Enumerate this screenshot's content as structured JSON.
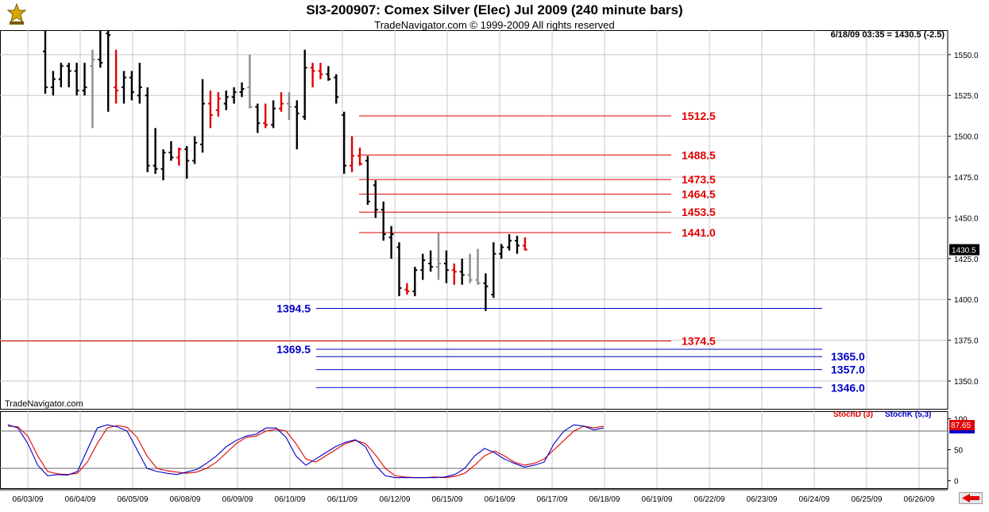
{
  "header": {
    "title": "SI3-200907:  Comex Silver (Elec) Jul 2009  (240 minute bars)",
    "copyright": "TradeNavigator.com © 1999-2009 All rights reserved",
    "readout": "6/18/09 03:35 = 1430.5 (-2.5)",
    "watermark": "TradeNavigator.com"
  },
  "colors": {
    "up_bar": "#000000",
    "down_bar": "#e00000",
    "neutral_bar": "#8c8c8c",
    "resistance": "#e00000",
    "support": "#0000c8",
    "grid": "#c8c8c8",
    "stoch_d": "#e00000",
    "stoch_k": "#0000c8",
    "last_price_bg": "#000000",
    "stoch_value_bg": "#e00000"
  },
  "icons": {
    "logo": "trade-navigator-logo-icon",
    "scroll": "scroll-right-arrow-icon"
  },
  "chart_data": [
    {
      "type": "ohlc",
      "ylim": [
        1333,
        1565
      ],
      "y_ticks": [
        1350,
        1375,
        1400,
        1425,
        1450,
        1475,
        1500,
        1525,
        1550
      ],
      "y_tick_labels": [
        "1350.0",
        "1375.0",
        "1400.0",
        "1425.0",
        "1450.0",
        "1475.0",
        "1500.0",
        "1525.0",
        "1550.0"
      ],
      "date_labels": [
        "06/03/09",
        "06/04/09",
        "06/05/09",
        "06/08/09",
        "06/09/09",
        "06/10/09",
        "06/11/09",
        "06/12/09",
        "06/15/09",
        "06/16/09",
        "06/17/09",
        "06/18/09",
        "06/19/09",
        "06/22/09",
        "06/23/09",
        "06/24/09",
        "06/25/09",
        "06/26/09"
      ],
      "last_price_label": "1430.5",
      "last_price": 1430.5,
      "bars": [
        {
          "date": "06/03/09",
          "o": 1552,
          "h": 1565,
          "l": 1526,
          "c": 1530,
          "color": "up"
        },
        {
          "date": "06/03/09",
          "o": 1530,
          "h": 1540,
          "l": 1525,
          "c": 1535,
          "color": "up"
        },
        {
          "date": "06/03/09",
          "o": 1535,
          "h": 1545,
          "l": 1530,
          "c": 1543,
          "color": "up"
        },
        {
          "date": "06/03/09",
          "o": 1543,
          "h": 1545,
          "l": 1530,
          "c": 1540,
          "color": "up"
        },
        {
          "date": "06/04/09",
          "o": 1540,
          "h": 1545,
          "l": 1525,
          "c": 1528,
          "color": "up"
        },
        {
          "date": "06/04/09",
          "o": 1528,
          "h": 1545,
          "l": 1525,
          "c": 1530,
          "color": "up"
        },
        {
          "date": "06/04/09",
          "o": 1543,
          "h": 1553,
          "l": 1505,
          "c": 1547,
          "color": "neutral"
        },
        {
          "date": "06/04/09",
          "o": 1547,
          "h": 1565,
          "l": 1542,
          "c": 1545,
          "color": "up"
        },
        {
          "date": "06/05/09",
          "o": 1563,
          "h": 1565,
          "l": 1515,
          "c": 1562,
          "color": "up"
        },
        {
          "date": "06/05/09",
          "o": 1530,
          "h": 1553,
          "l": 1520,
          "c": 1528,
          "color": "down"
        },
        {
          "date": "06/05/09",
          "o": 1530,
          "h": 1540,
          "l": 1520,
          "c": 1536,
          "color": "up"
        },
        {
          "date": "06/05/09",
          "o": 1536,
          "h": 1540,
          "l": 1522,
          "c": 1527,
          "color": "up"
        },
        {
          "date": "06/05/09",
          "o": 1525,
          "h": 1545,
          "l": 1520,
          "c": 1530,
          "color": "up"
        },
        {
          "date": "06/08/09",
          "o": 1525,
          "h": 1530,
          "l": 1478,
          "c": 1482,
          "color": "up"
        },
        {
          "date": "06/08/09",
          "o": 1482,
          "h": 1505,
          "l": 1477,
          "c": 1480,
          "color": "up"
        },
        {
          "date": "06/08/09",
          "o": 1480,
          "h": 1492,
          "l": 1473,
          "c": 1490,
          "color": "up"
        },
        {
          "date": "06/08/09",
          "o": 1490,
          "h": 1497,
          "l": 1485,
          "c": 1487,
          "color": "up"
        },
        {
          "date": "06/08/09",
          "o": 1487,
          "h": 1493,
          "l": 1482,
          "c": 1492,
          "color": "down"
        },
        {
          "date": "06/09/09",
          "o": 1492,
          "h": 1494,
          "l": 1474,
          "c": 1485,
          "color": "up"
        },
        {
          "date": "06/09/09",
          "o": 1485,
          "h": 1500,
          "l": 1483,
          "c": 1496,
          "color": "up"
        },
        {
          "date": "06/09/09",
          "o": 1495,
          "h": 1535,
          "l": 1490,
          "c": 1520,
          "color": "up"
        },
        {
          "date": "06/09/09",
          "o": 1520,
          "h": 1528,
          "l": 1505,
          "c": 1513,
          "color": "down"
        },
        {
          "date": "06/10/09",
          "o": 1516,
          "h": 1527,
          "l": 1512,
          "c": 1523,
          "color": "down"
        },
        {
          "date": "06/10/09",
          "o": 1520,
          "h": 1528,
          "l": 1516,
          "c": 1524,
          "color": "up"
        },
        {
          "date": "06/10/09",
          "o": 1524,
          "h": 1530,
          "l": 1520,
          "c": 1527,
          "color": "up"
        },
        {
          "date": "06/10/09",
          "o": 1527,
          "h": 1533,
          "l": 1524,
          "c": 1529,
          "color": "up"
        },
        {
          "date": "06/10/09",
          "o": 1530,
          "h": 1550,
          "l": 1517,
          "c": 1518,
          "color": "neutral"
        },
        {
          "date": "06/10/09",
          "o": 1518,
          "h": 1520,
          "l": 1502,
          "c": 1508,
          "color": "up"
        },
        {
          "date": "06/10/09",
          "o": 1508,
          "h": 1520,
          "l": 1505,
          "c": 1507,
          "color": "down"
        },
        {
          "date": "06/11/09",
          "o": 1507,
          "h": 1522,
          "l": 1505,
          "c": 1517,
          "color": "up"
        },
        {
          "date": "06/11/09",
          "o": 1517,
          "h": 1527,
          "l": 1515,
          "c": 1520,
          "color": "down"
        },
        {
          "date": "06/11/09",
          "o": 1520,
          "h": 1527,
          "l": 1510,
          "c": 1518,
          "color": "neutral"
        },
        {
          "date": "06/11/09",
          "o": 1518,
          "h": 1522,
          "l": 1492,
          "c": 1514,
          "color": "up"
        },
        {
          "date": "06/11/09",
          "o": 1512,
          "h": 1553,
          "l": 1510,
          "c": 1542,
          "color": "up"
        },
        {
          "date": "06/11/09",
          "o": 1542,
          "h": 1545,
          "l": 1530,
          "c": 1540,
          "color": "down"
        },
        {
          "date": "06/12/09",
          "o": 1540,
          "h": 1545,
          "l": 1535,
          "c": 1538,
          "color": "down"
        },
        {
          "date": "06/12/09",
          "o": 1538,
          "h": 1543,
          "l": 1534,
          "c": 1535,
          "color": "up"
        },
        {
          "date": "06/12/09",
          "o": 1536,
          "h": 1538,
          "l": 1520,
          "c": 1524,
          "color": "up"
        },
        {
          "date": "06/12/09",
          "o": 1513,
          "h": 1515,
          "l": 1477,
          "c": 1482,
          "color": "up"
        },
        {
          "date": "06/12/09",
          "o": 1482,
          "h": 1500,
          "l": 1478,
          "c": 1488,
          "color": "down"
        },
        {
          "date": "06/12/09",
          "o": 1488,
          "h": 1493,
          "l": 1482,
          "c": 1483,
          "color": "down"
        },
        {
          "date": "06/15/09",
          "o": 1485,
          "h": 1488,
          "l": 1458,
          "c": 1460,
          "color": "up"
        },
        {
          "date": "06/15/09",
          "o": 1470,
          "h": 1473,
          "l": 1450,
          "c": 1455,
          "color": "up"
        },
        {
          "date": "06/15/09",
          "o": 1455,
          "h": 1460,
          "l": 1436,
          "c": 1440,
          "color": "up"
        },
        {
          "date": "06/15/09",
          "o": 1438,
          "h": 1445,
          "l": 1425,
          "c": 1440,
          "color": "up"
        },
        {
          "date": "06/15/09",
          "o": 1432,
          "h": 1435,
          "l": 1402,
          "c": 1407,
          "color": "up"
        },
        {
          "date": "06/15/09",
          "o": 1406,
          "h": 1410,
          "l": 1403,
          "c": 1405,
          "color": "down"
        },
        {
          "date": "06/16/09",
          "o": 1405,
          "h": 1420,
          "l": 1402,
          "c": 1418,
          "color": "up"
        },
        {
          "date": "06/16/09",
          "o": 1418,
          "h": 1428,
          "l": 1412,
          "c": 1424,
          "color": "up"
        },
        {
          "date": "06/16/09",
          "o": 1422,
          "h": 1430,
          "l": 1417,
          "c": 1420,
          "color": "up"
        },
        {
          "date": "06/16/09",
          "o": 1420,
          "h": 1441,
          "l": 1412,
          "c": 1422,
          "color": "neutral"
        },
        {
          "date": "06/16/09",
          "o": 1422,
          "h": 1430,
          "l": 1410,
          "c": 1418,
          "color": "up"
        },
        {
          "date": "06/16/09",
          "o": 1418,
          "h": 1422,
          "l": 1409,
          "c": 1417,
          "color": "down"
        },
        {
          "date": "06/17/09",
          "o": 1417,
          "h": 1425,
          "l": 1409,
          "c": 1415,
          "color": "up"
        },
        {
          "date": "06/17/09",
          "o": 1415,
          "h": 1428,
          "l": 1410,
          "c": 1412,
          "color": "neutral"
        },
        {
          "date": "06/17/09",
          "o": 1412,
          "h": 1431,
          "l": 1409,
          "c": 1410,
          "color": "neutral"
        },
        {
          "date": "06/17/09",
          "o": 1410,
          "h": 1416,
          "l": 1393,
          "c": 1408,
          "color": "up"
        },
        {
          "date": "06/17/09",
          "o": 1403,
          "h": 1435,
          "l": 1401,
          "c": 1428,
          "color": "up"
        },
        {
          "date": "06/17/09",
          "o": 1428,
          "h": 1434,
          "l": 1425,
          "c": 1432,
          "color": "up"
        },
        {
          "date": "06/18/09",
          "o": 1432,
          "h": 1440,
          "l": 1430,
          "c": 1436,
          "color": "up"
        },
        {
          "date": "06/18/09",
          "o": 1436,
          "h": 1439,
          "l": 1428,
          "c": 1433,
          "color": "up"
        },
        {
          "date": "06/18/09",
          "o": 1433,
          "h": 1438,
          "l": 1430,
          "c": 1430.5,
          "color": "down"
        }
      ],
      "levels": [
        {
          "label": "1512.5",
          "value": 1512.5,
          "kind": "resistance"
        },
        {
          "label": "1488.5",
          "value": 1488.5,
          "kind": "resistance"
        },
        {
          "label": "1473.5",
          "value": 1473.5,
          "kind": "resistance"
        },
        {
          "label": "1464.5",
          "value": 1464.5,
          "kind": "resistance"
        },
        {
          "label": "1453.5",
          "value": 1453.5,
          "kind": "resistance"
        },
        {
          "label": "1441.0",
          "value": 1441.0,
          "kind": "resistance"
        },
        {
          "label": "1394.5",
          "value": 1394.5,
          "kind": "support"
        },
        {
          "label": "1374.5",
          "value": 1374.5,
          "kind": "resistance"
        },
        {
          "label": "1369.5",
          "value": 1369.5,
          "kind": "support"
        },
        {
          "label": "1365.0",
          "value": 1365.0,
          "kind": "support"
        },
        {
          "label": "1357.0",
          "value": 1357.0,
          "kind": "support"
        },
        {
          "label": "1346.0",
          "value": 1346.0,
          "kind": "support"
        }
      ]
    },
    {
      "type": "line",
      "ylim": [
        -12,
        112
      ],
      "y_ticks": [
        0,
        50,
        100
      ],
      "y_tick_labels": [
        "0",
        "50",
        "100"
      ],
      "reference_lines": [
        80,
        20
      ],
      "legend": [
        "StochD (3)",
        "StochK (5,3)"
      ],
      "current_value_label": "87.65",
      "series": [
        {
          "name": "StochD (3)",
          "values": [
            88,
            87,
            72,
            40,
            15,
            11,
            10,
            12,
            30,
            60,
            85,
            89,
            86,
            70,
            40,
            20,
            16,
            14,
            12,
            14,
            20,
            30,
            45,
            60,
            70,
            72,
            80,
            83,
            80,
            60,
            35,
            30,
            40,
            50,
            60,
            65,
            60,
            42,
            20,
            8,
            6,
            5,
            5,
            6,
            5,
            7,
            12,
            25,
            40,
            48,
            40,
            30,
            25,
            28,
            35,
            50,
            65,
            80,
            88,
            85,
            87.65
          ]
        },
        {
          "name": "StochK (5,3)",
          "values": [
            90,
            85,
            60,
            25,
            8,
            10,
            9,
            15,
            50,
            85,
            90,
            87,
            80,
            50,
            20,
            15,
            12,
            10,
            14,
            18,
            28,
            40,
            55,
            65,
            72,
            75,
            85,
            85,
            70,
            40,
            25,
            35,
            45,
            55,
            62,
            66,
            55,
            25,
            8,
            5,
            5,
            5,
            5,
            5,
            6,
            10,
            20,
            40,
            52,
            45,
            35,
            28,
            22,
            25,
            30,
            60,
            80,
            90,
            88,
            82,
            85
          ]
        }
      ]
    }
  ]
}
